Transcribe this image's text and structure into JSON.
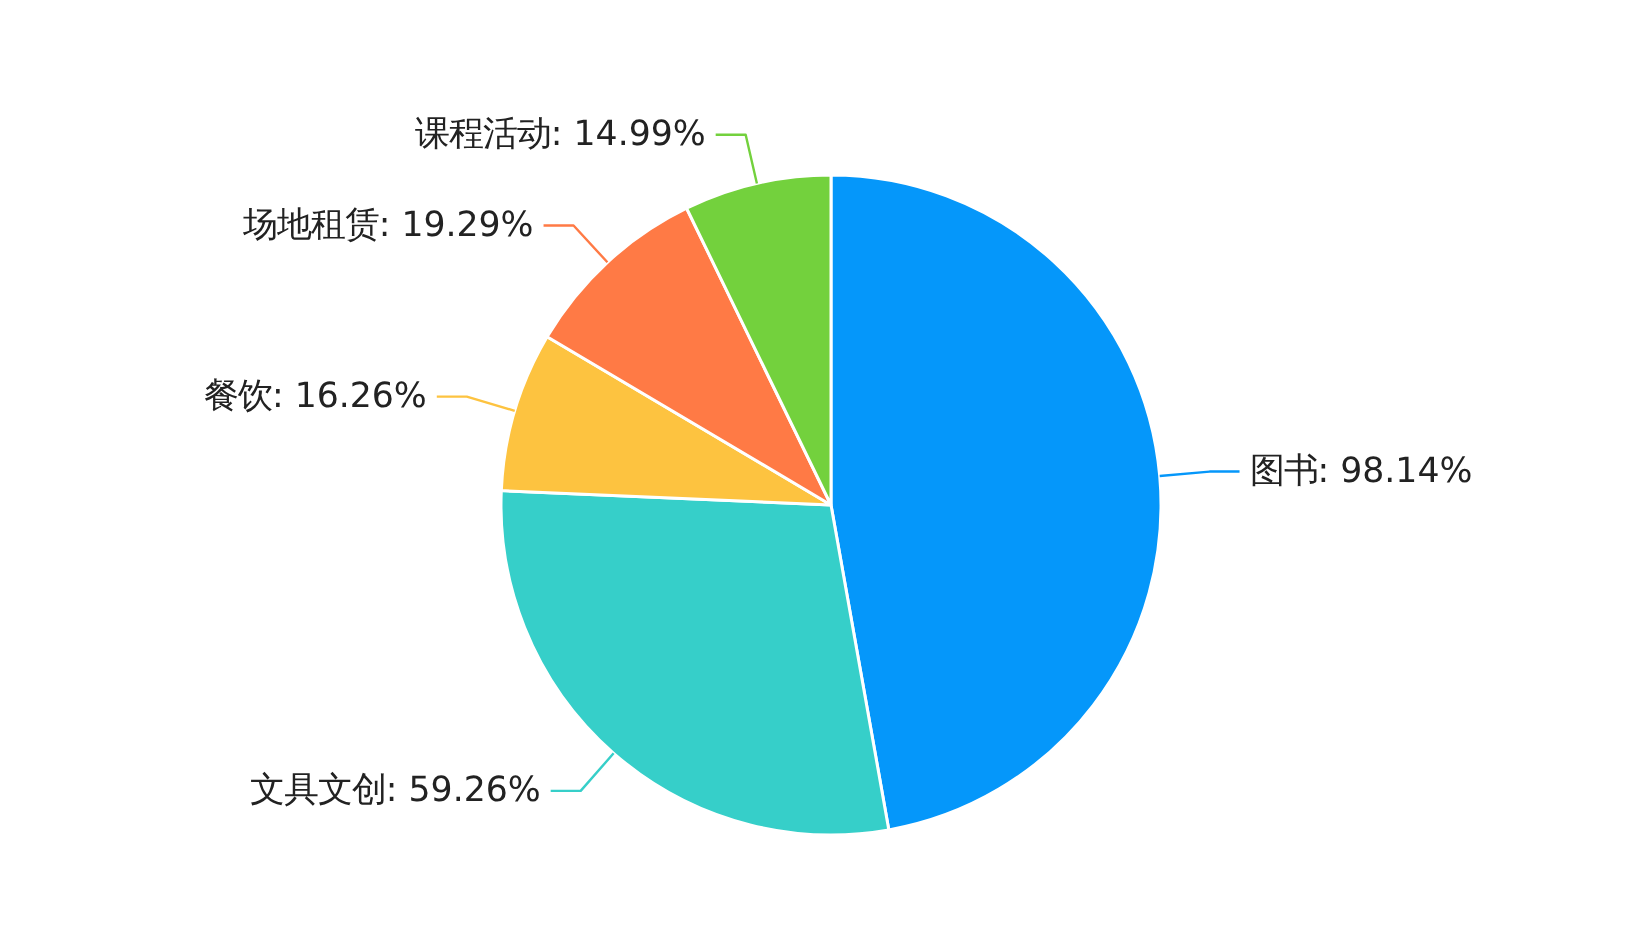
{
  "chart_data": {
    "type": "pie",
    "categories": [
      "图书",
      "文具文创",
      "餐饮",
      "场地租赁",
      "课程活动"
    ],
    "values": [
      98.14,
      59.26,
      16.26,
      19.29,
      14.99
    ],
    "value_labels": [
      "98.14%",
      "59.26%",
      "16.26%",
      "19.29%",
      "14.99%"
    ],
    "colors": [
      "#0597fa",
      "#36cfc9",
      "#fdc340",
      "#ff7a45",
      "#73d13d"
    ]
  }
}
